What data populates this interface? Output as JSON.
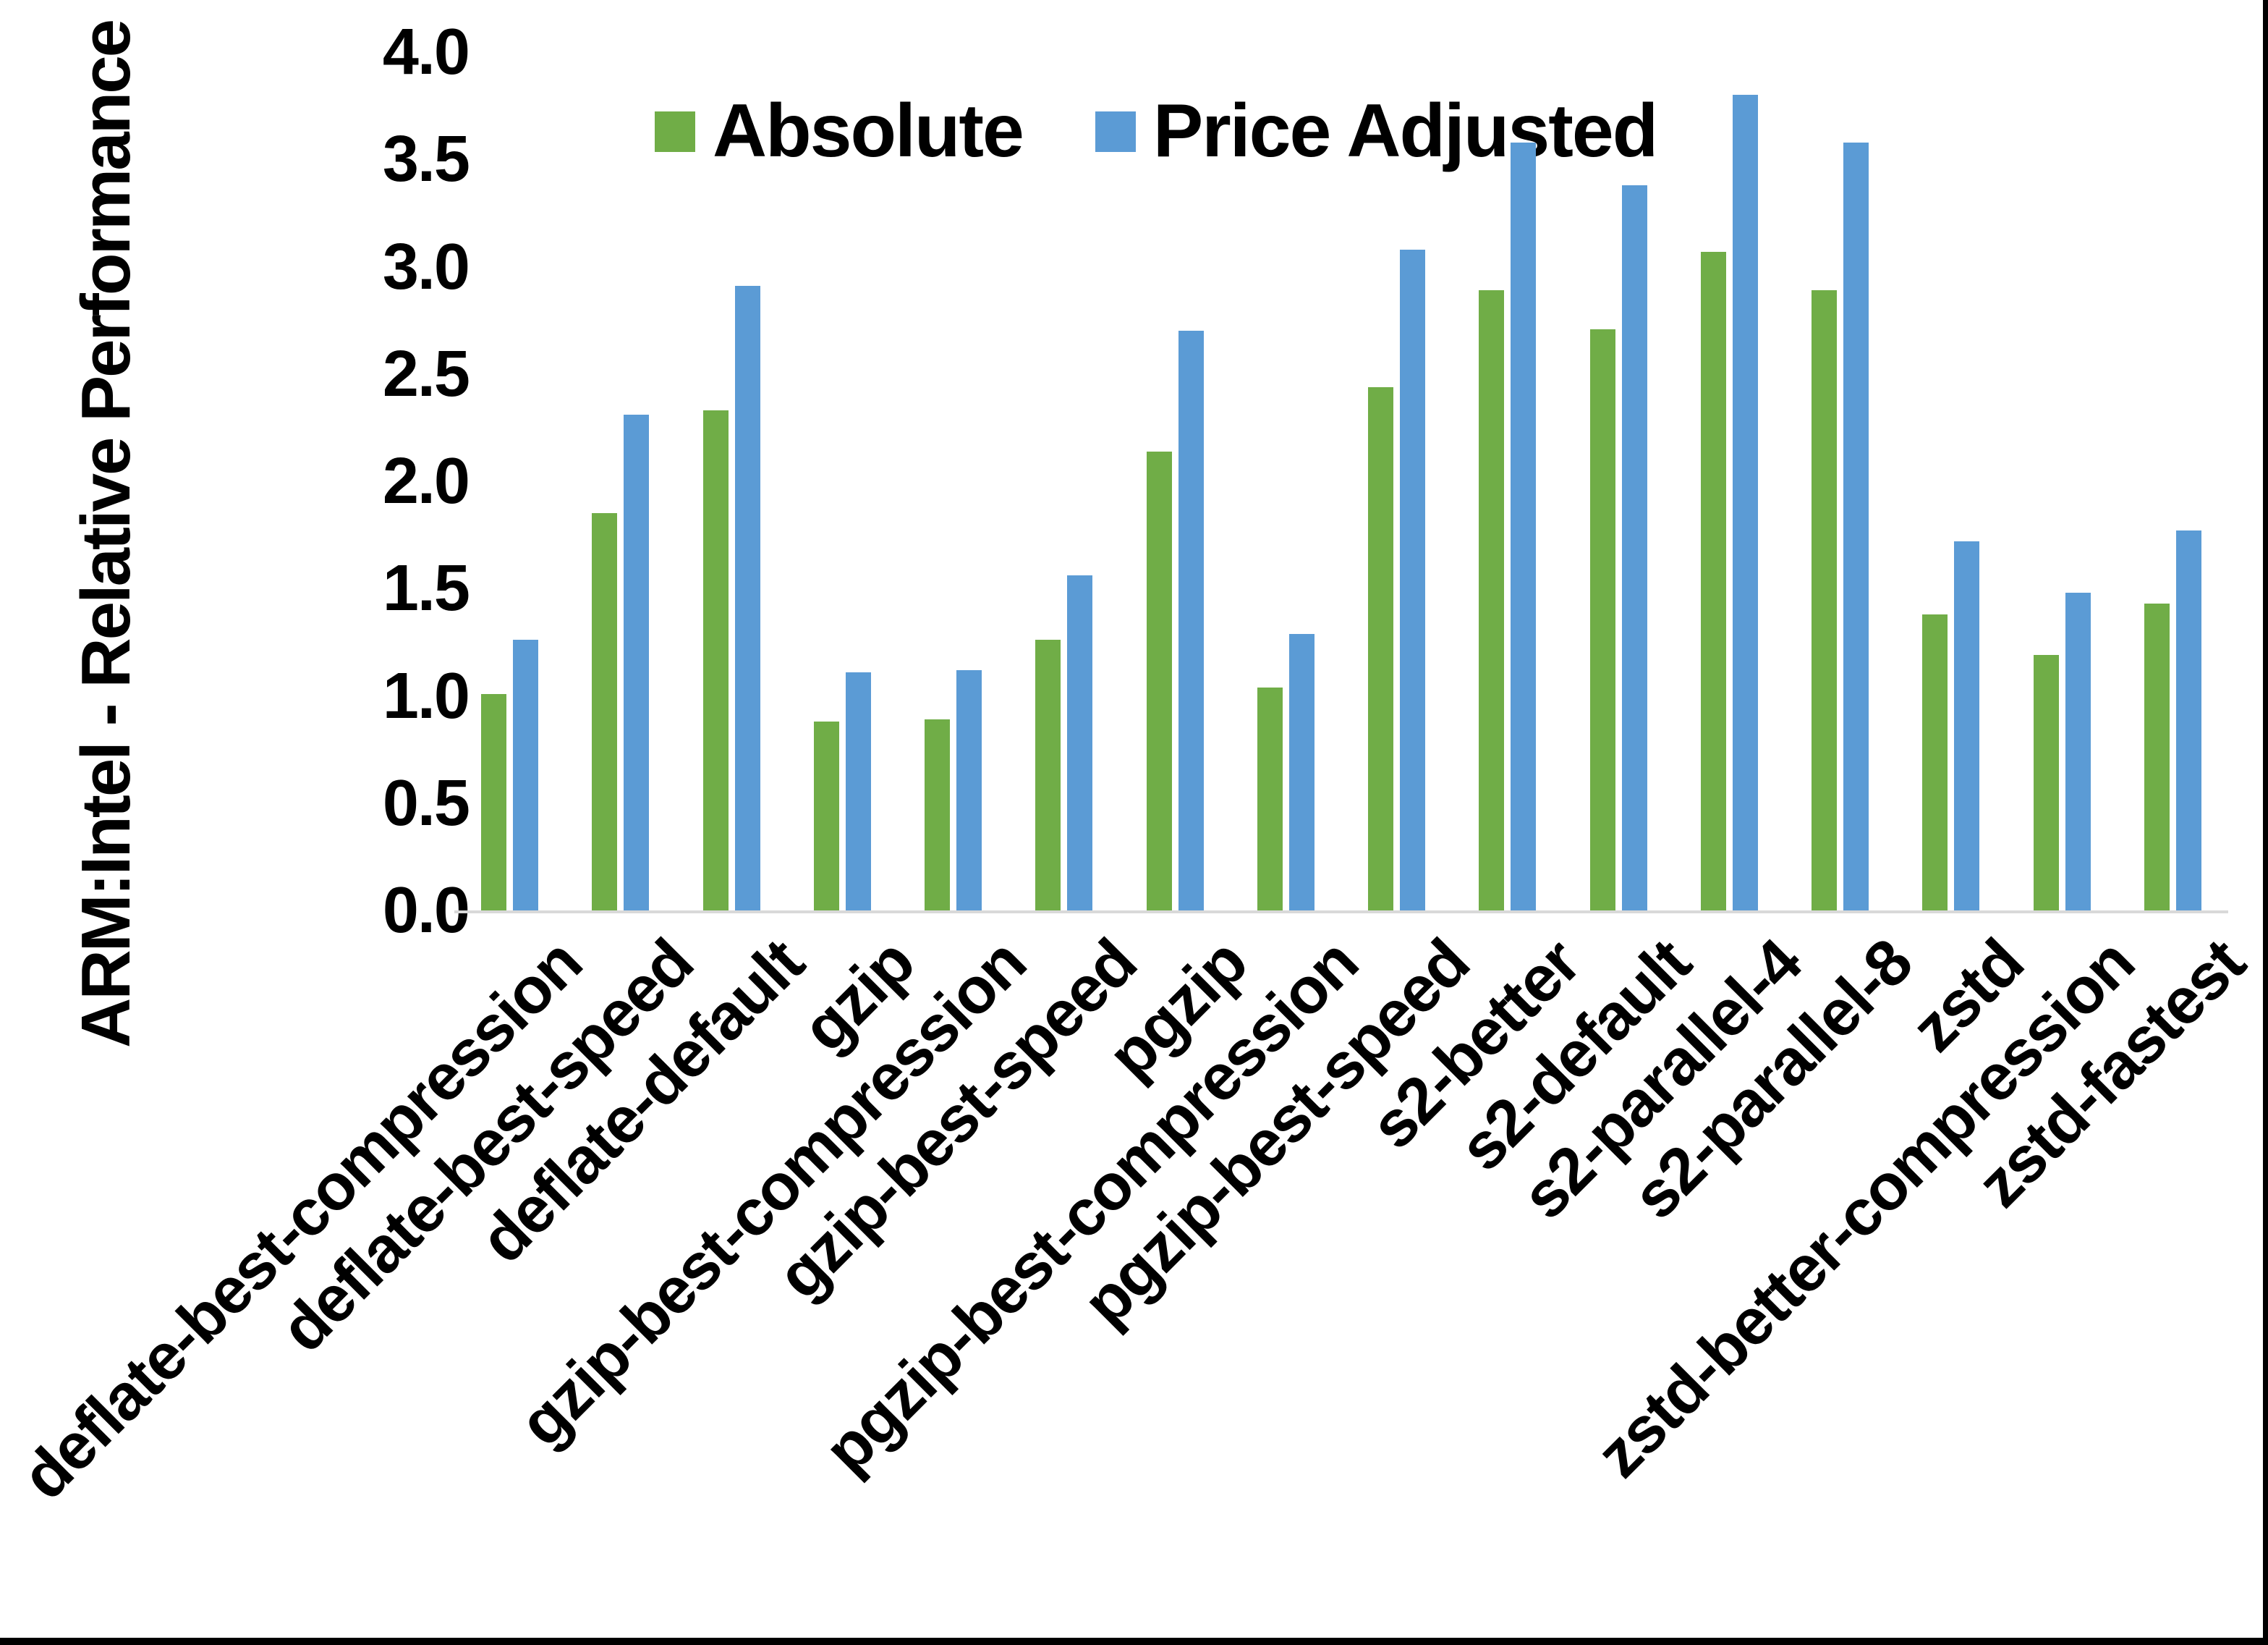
{
  "chart_data": {
    "type": "bar",
    "title": "",
    "ylabel": "ARM:Intel - Relative Performance",
    "xlabel": "",
    "ylim": [
      0.0,
      4.0
    ],
    "ytick_step": 0.5,
    "ytick_labels": [
      "4.0",
      "3.5",
      "3.0",
      "2.5",
      "2.0",
      "1.5",
      "1.0",
      "0.5",
      "0.0"
    ],
    "grid": false,
    "legend_position": "top-center",
    "categories": [
      "deflate-best-compression",
      "deflate-best-speed",
      "deflate-default",
      "gzip",
      "gzip-best-compression",
      "gzip-best-speed",
      "pgzip",
      "pgzip-best-compression",
      "pgzip-best-speed",
      "s2-better",
      "s2-default",
      "s2-parallel-4",
      "s2-parallel-8",
      "zstd",
      "zstd-better-compression",
      "zstd-fastest"
    ],
    "series": [
      {
        "name": "Absolute",
        "color": "#70AD47",
        "values": [
          1.01,
          1.85,
          2.33,
          0.88,
          0.89,
          1.26,
          2.14,
          1.04,
          2.44,
          2.89,
          2.71,
          3.07,
          2.89,
          1.38,
          1.19,
          1.43
        ]
      },
      {
        "name": "Price Adjusted",
        "color": "#5B9BD5",
        "values": [
          1.26,
          2.31,
          2.91,
          1.11,
          1.12,
          1.56,
          2.7,
          1.29,
          3.08,
          3.58,
          3.38,
          3.8,
          3.58,
          1.72,
          1.48,
          1.77
        ]
      }
    ],
    "axis_line_color": "#D9D9D9",
    "frame": {
      "bottom_bar_color": "#000000",
      "right_bar_color": "#000000"
    }
  },
  "legend": {
    "items": [
      {
        "label": "Absolute",
        "color": "#70AD47"
      },
      {
        "label": "Price Adjusted",
        "color": "#5B9BD5"
      }
    ]
  }
}
